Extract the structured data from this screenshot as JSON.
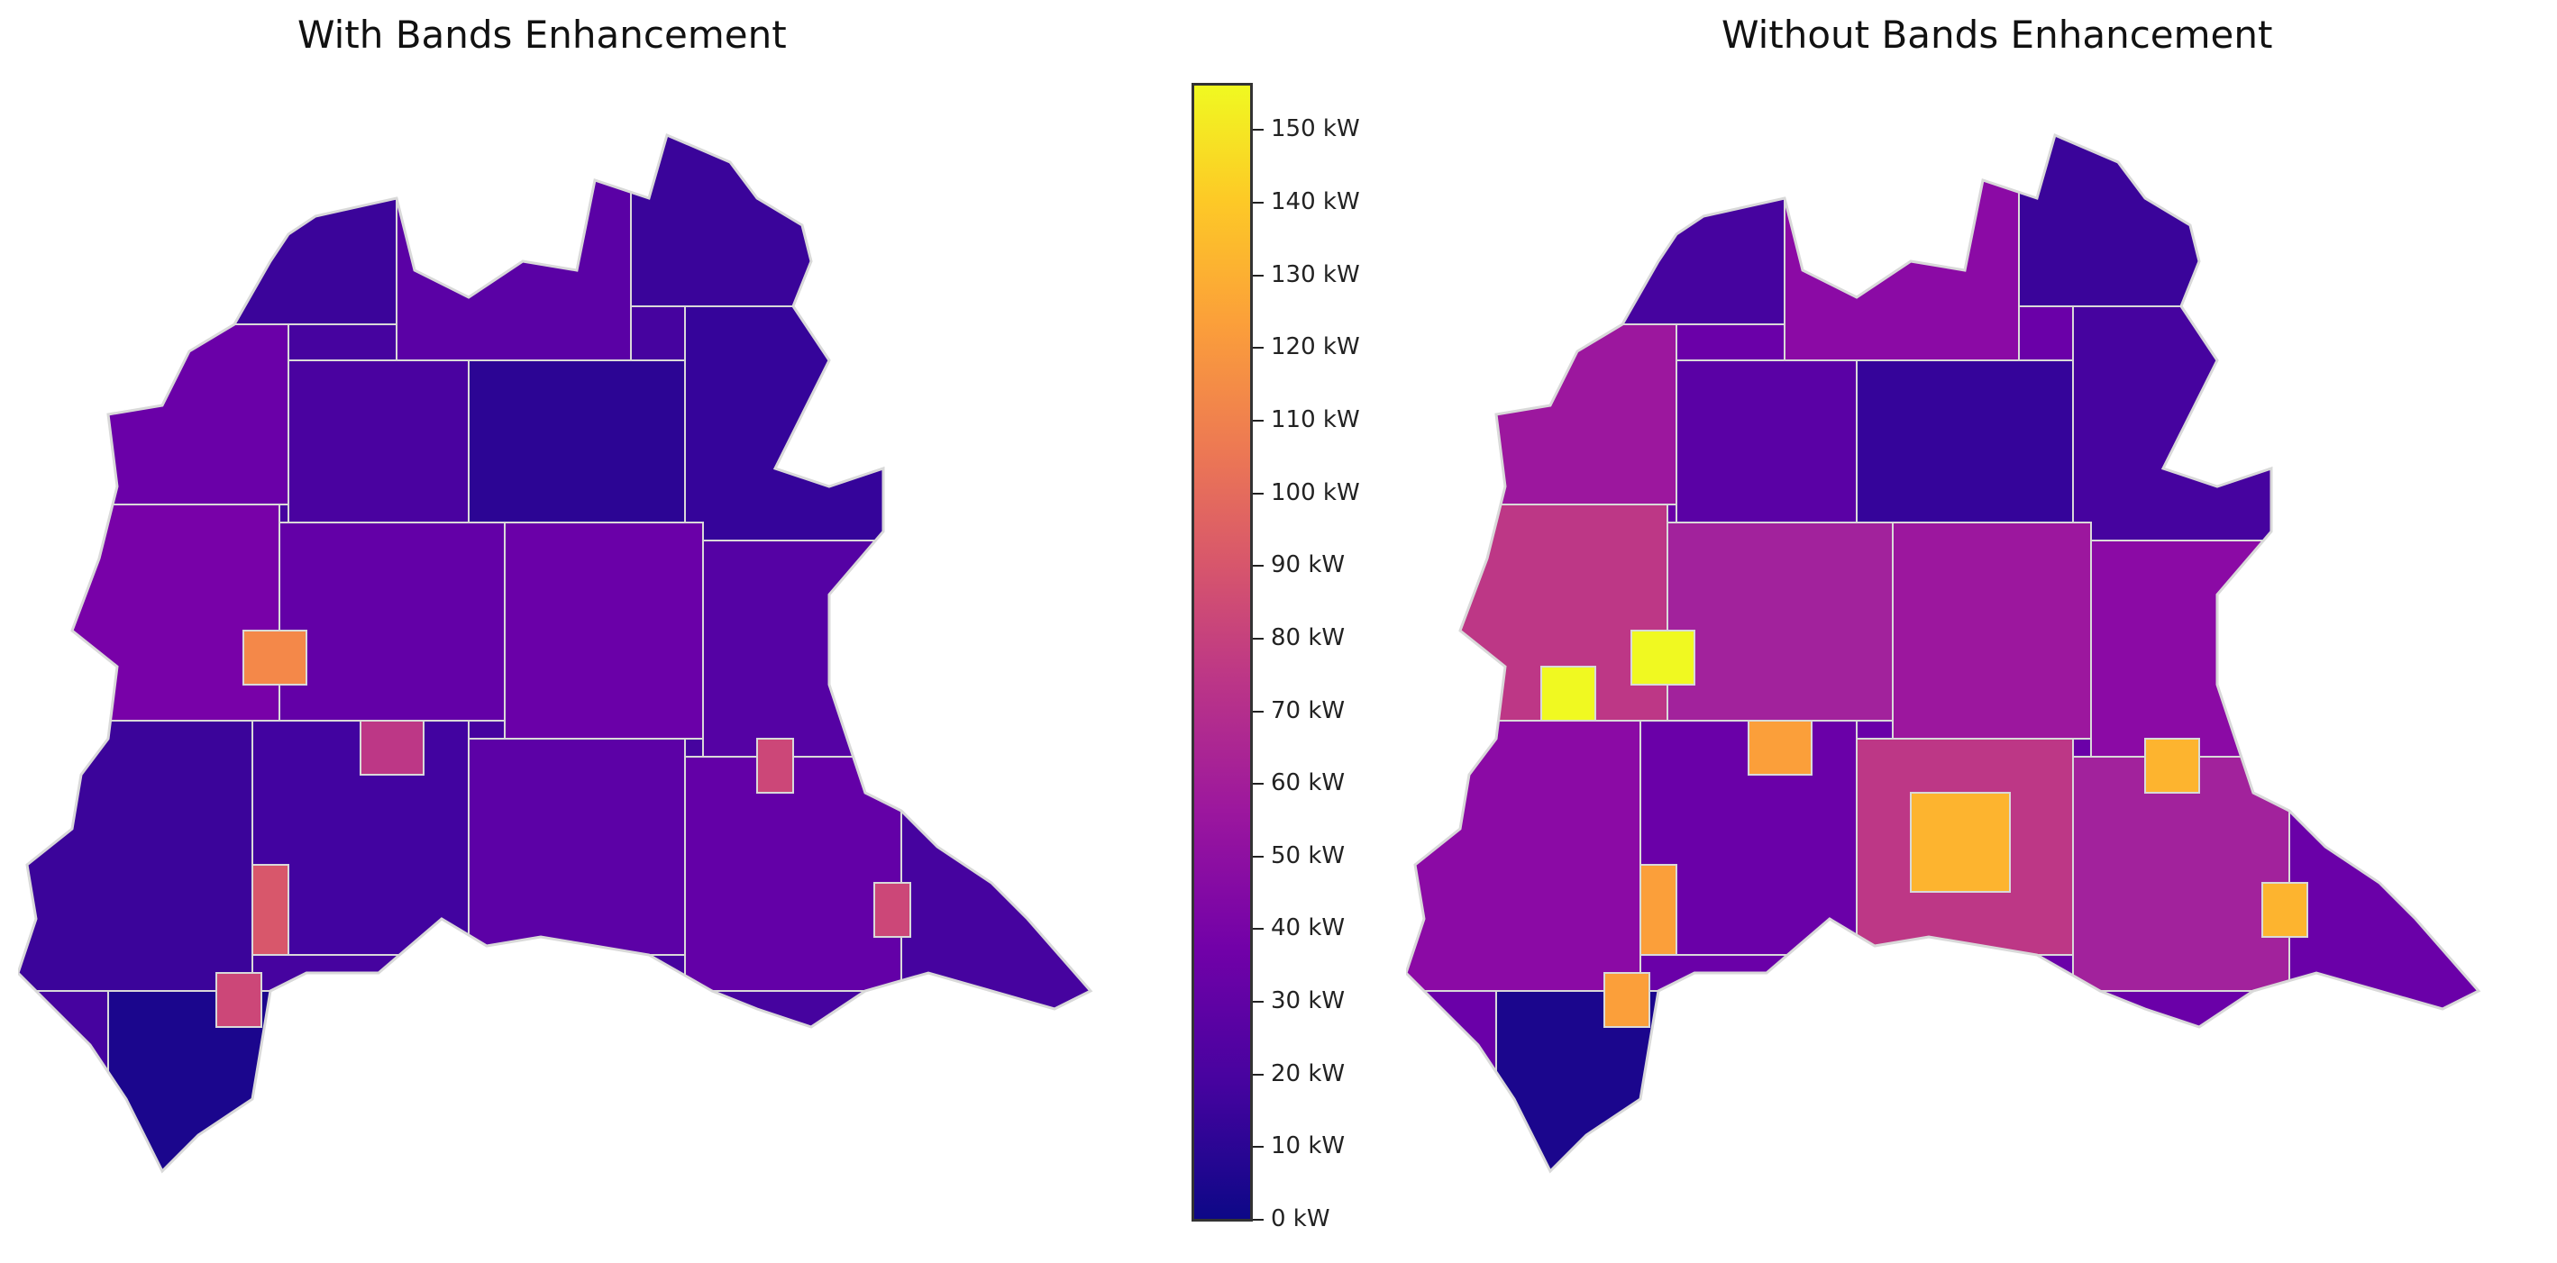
{
  "maps": [
    {
      "title": "With Bands Enhancement"
    },
    {
      "title": "Without Bands Enhancement"
    }
  ],
  "colorbar": {
    "colormap": "plasma",
    "ticks": [
      "0 kW",
      "10 kW",
      "20 kW",
      "30 kW",
      "40 kW",
      "50 kW",
      "60 kW",
      "70 kW",
      "80 kW",
      "90 kW",
      "100 kW",
      "110 kW",
      "120 kW",
      "130 kW",
      "140 kW",
      "150 kW"
    ],
    "min_value": 0,
    "max_value": 156
  },
  "colors": {
    "low": "#0d0887",
    "mid": "#9c179e",
    "high": "#fdca26",
    "top": "#f0f921",
    "borders": "#d9d9d9"
  }
}
